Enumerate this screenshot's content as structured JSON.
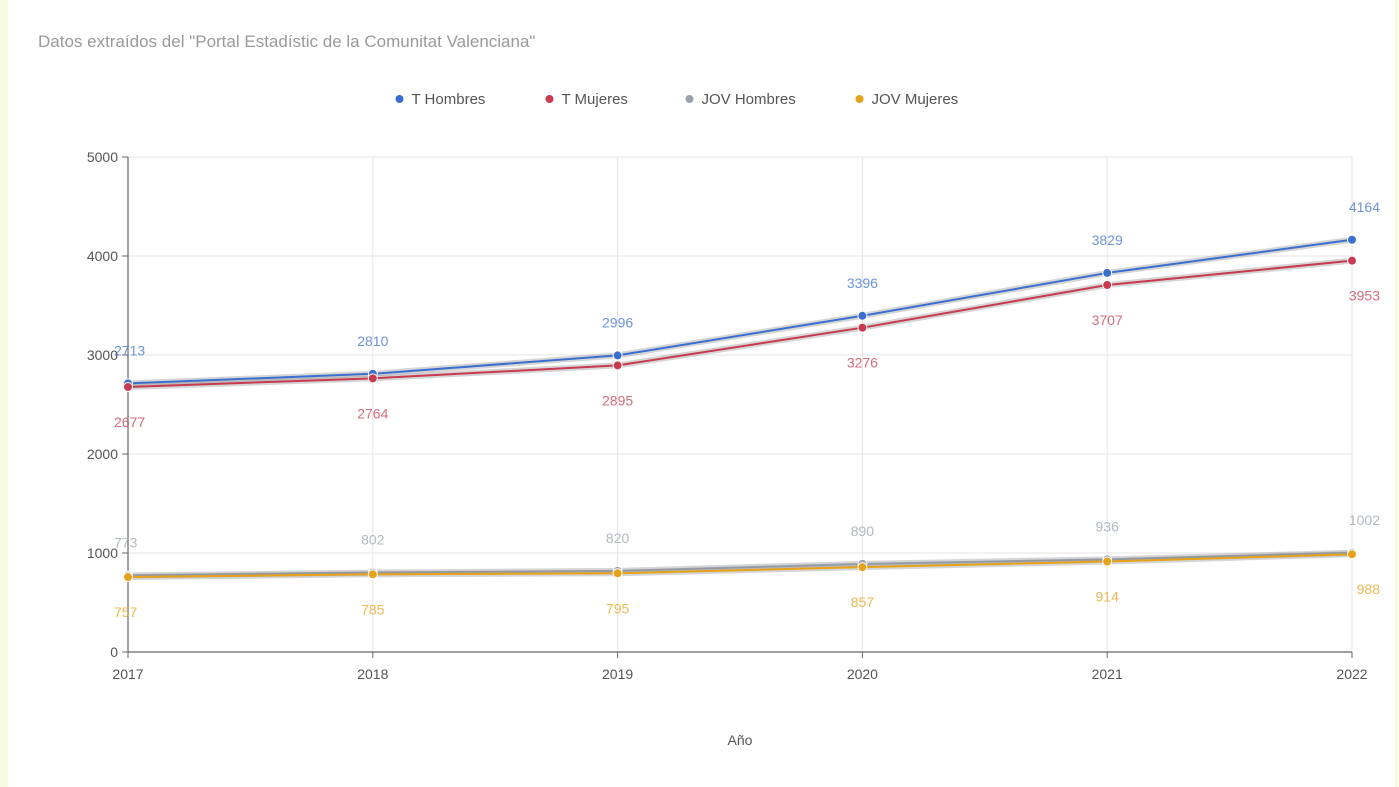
{
  "colors": {
    "t_hombres": "#3a6fd0",
    "t_mujeres": "#c83a4f",
    "jov_hombres": "#9aa2ae",
    "jov_mujeres": "#e8a21a",
    "grid": "#e6e6e6",
    "axis": "#666666"
  },
  "chart_data": {
    "type": "line",
    "title": "",
    "subtitle": "Datos extraídos del \"Portal Estadístic de la Comunitat Valenciana\"",
    "xlabel": "Año",
    "ylabel": "",
    "categories": [
      "2017",
      "2018",
      "2019",
      "2020",
      "2021",
      "2022"
    ],
    "ylim": [
      0,
      5000
    ],
    "yticks": [
      0,
      1000,
      2000,
      3000,
      4000,
      5000
    ],
    "grid": true,
    "legend_position": "top",
    "series": [
      {
        "name": "T Hombres",
        "color_key": "t_hombres",
        "values": [
          2713,
          2810,
          2996,
          3396,
          3829,
          4164
        ],
        "labels": [
          "2713",
          "2810",
          "2996",
          "3396",
          "3829",
          "4164"
        ],
        "label_side": "above"
      },
      {
        "name": "T Mujeres",
        "color_key": "t_mujeres",
        "values": [
          2677,
          2764,
          2895,
          3276,
          3707,
          3953
        ],
        "labels": [
          "2677",
          "2764",
          "2895",
          "3276",
          "3707",
          "3953"
        ],
        "label_side": "below"
      },
      {
        "name": "JOV Hombres",
        "color_key": "jov_hombres",
        "values": [
          773,
          802,
          820,
          890,
          936,
          1002
        ],
        "labels": [
          "773",
          "802",
          "820",
          "890",
          "936",
          "1002"
        ],
        "label_side": "above"
      },
      {
        "name": "JOV Mujeres",
        "color_key": "jov_mujeres",
        "values": [
          757,
          785,
          795,
          857,
          914,
          988
        ],
        "labels": [
          "757",
          "785",
          "795",
          "857",
          "914",
          "988"
        ],
        "label_side": "below"
      }
    ]
  }
}
